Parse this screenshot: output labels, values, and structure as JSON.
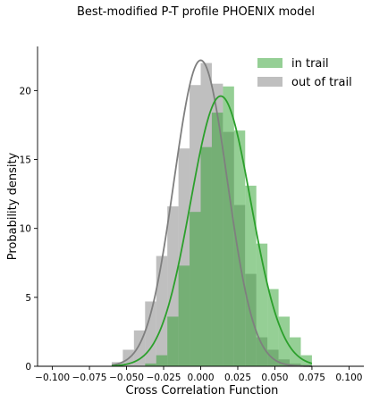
{
  "chart_data": {
    "type": "histogram",
    "title": "Best-modified P-T profile PHOENIX model",
    "xlabel": "Cross Correlation Function",
    "ylabel": "Probability density",
    "xlim": [
      -0.11,
      0.11
    ],
    "ylim": [
      0,
      23.2
    ],
    "xticks": [
      -0.1,
      -0.075,
      -0.05,
      -0.025,
      0.0,
      0.025,
      0.05,
      0.075,
      0.1
    ],
    "xtick_labels": [
      "−0.100",
      "−0.075",
      "−0.050",
      "−0.025",
      "0.000",
      "0.025",
      "0.050",
      "0.075",
      "0.100"
    ],
    "yticks": [
      0,
      5,
      10,
      15,
      20
    ],
    "ytick_labels": [
      "0",
      "5",
      "10",
      "15",
      "20"
    ],
    "legend_position": "top-right",
    "bin_edges": [
      -0.06,
      -0.0525,
      -0.045,
      -0.0375,
      -0.03,
      -0.0225,
      -0.015,
      -0.0075,
      0.0,
      0.0075,
      0.015,
      0.0225,
      0.03,
      0.0375,
      0.045,
      0.0525,
      0.06,
      0.0675,
      0.075
    ],
    "series": [
      {
        "name": "out of trail",
        "color": "#808080",
        "hist_values": [
          0.3,
          1.2,
          2.6,
          4.7,
          8.0,
          11.6,
          15.8,
          20.4,
          22.0,
          20.5,
          17.0,
          11.7,
          6.7,
          2.1,
          1.2,
          0.5,
          0.2,
          0.1
        ],
        "fit": {
          "mean": 0.0,
          "peak_density": 22.2
        }
      },
      {
        "name": "in trail",
        "color": "#2ca02c",
        "hist_values": [
          0,
          0,
          0,
          0.2,
          0.8,
          3.6,
          7.3,
          11.2,
          15.9,
          18.4,
          20.3,
          17.1,
          13.1,
          8.9,
          5.6,
          3.6,
          2.1,
          0.8
        ],
        "fit": {
          "mean": 0.0135,
          "peak_density": 19.6
        }
      }
    ]
  }
}
